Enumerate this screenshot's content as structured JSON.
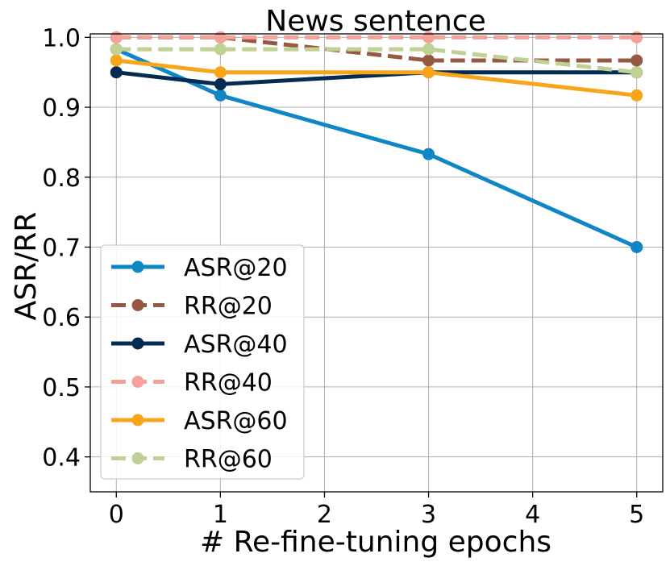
{
  "chart_data": {
    "type": "line",
    "title": "News sentence",
    "xlabel": "# Re-fine-tuning epochs",
    "ylabel": "ASR/RR",
    "xlim": [
      -0.25,
      5.25
    ],
    "ylim": [
      0.35,
      1.005
    ],
    "xticks": [
      0,
      1,
      2,
      3,
      4,
      5
    ],
    "xtick_labels": [
      "0",
      "1",
      "2",
      "3",
      "4",
      "5"
    ],
    "yticks": [
      0.4,
      0.5,
      0.6,
      0.7,
      0.8,
      0.9,
      1.0
    ],
    "ytick_labels": [
      "0.4",
      "0.5",
      "0.6",
      "0.7",
      "0.8",
      "0.9",
      "1.0"
    ],
    "grid": true,
    "legend_position": "lower-left",
    "x": [
      0,
      1,
      3,
      5
    ],
    "series": [
      {
        "name": "ASR@20",
        "values": [
          0.983,
          0.917,
          0.833,
          0.7
        ],
        "color": "#0f86c6",
        "style": "solid"
      },
      {
        "name": "RR@20",
        "values": [
          1.0,
          1.0,
          0.967,
          0.967
        ],
        "color": "#955843",
        "style": "dashed"
      },
      {
        "name": "ASR@40",
        "values": [
          0.95,
          0.933,
          0.95,
          0.95
        ],
        "color": "#042b52",
        "style": "solid"
      },
      {
        "name": "RR@40",
        "values": [
          1.0,
          1.0,
          1.0,
          1.0
        ],
        "color": "#f4a19a",
        "style": "dashed"
      },
      {
        "name": "ASR@60",
        "values": [
          0.967,
          0.95,
          0.95,
          0.917
        ],
        "color": "#f8a51c",
        "style": "solid"
      },
      {
        "name": "RR@60",
        "values": [
          0.983,
          0.983,
          0.983,
          0.95
        ],
        "color": "#c1d094",
        "style": "dashed"
      }
    ]
  }
}
